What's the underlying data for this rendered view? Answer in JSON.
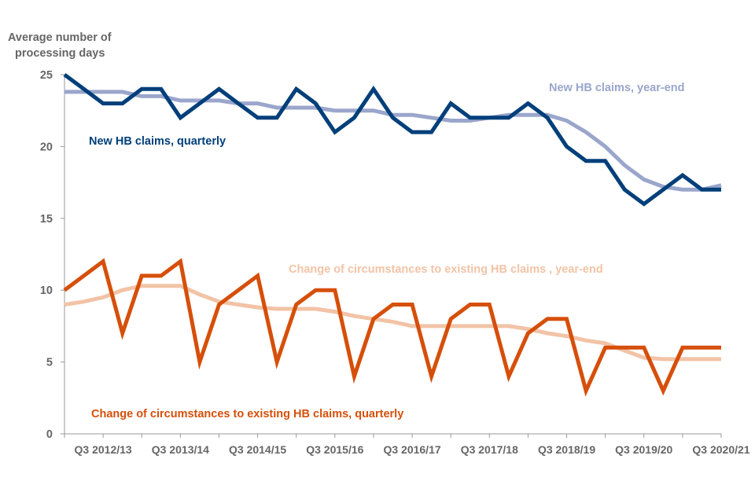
{
  "chart_data": {
    "type": "line",
    "ylabel": [
      "Average number of",
      "processing days"
    ],
    "ylim": [
      0,
      25
    ],
    "yticks": [
      0,
      5,
      10,
      15,
      20,
      25
    ],
    "xlabel": "",
    "xtick_labels": [
      "Q3 2012/13",
      "Q3 2013/14",
      "Q3 2014/15",
      "Q3 2015/16",
      "Q3 2016/17",
      "Q3 2017/18",
      "Q3 2018/19",
      "Q3 2019/20",
      "Q3 2020/21"
    ],
    "xtick_positions": [
      2,
      6,
      10,
      14,
      18,
      22,
      26,
      30,
      34
    ],
    "n_points": 35,
    "grid": false,
    "legend": "none (inline labels)",
    "series": [
      {
        "name": "New HB claims, quarterly",
        "color": "#003f7a",
        "values": [
          25,
          24,
          23,
          23,
          24,
          24,
          22,
          23,
          24,
          23,
          22,
          22,
          24,
          23,
          21,
          22,
          24,
          22,
          21,
          21,
          23,
          22,
          22,
          22,
          23,
          22,
          20,
          19,
          19,
          17,
          16,
          17,
          18,
          17,
          17
        ]
      },
      {
        "name": "New HB claims, year-end",
        "color": "#9aa6cb",
        "values": [
          23.8,
          23.8,
          23.8,
          23.8,
          23.5,
          23.5,
          23.2,
          23.2,
          23.2,
          23.0,
          23.0,
          22.7,
          22.7,
          22.7,
          22.5,
          22.5,
          22.5,
          22.2,
          22.2,
          22.0,
          21.8,
          21.8,
          22.0,
          22.2,
          22.2,
          22.2,
          21.8,
          21.0,
          20.0,
          18.7,
          17.7,
          17.2,
          17.0,
          17.0,
          17.3
        ]
      },
      {
        "name": "Change of circumstances to existing HB claims, quarterly",
        "color": "#d64f0a",
        "values": [
          10,
          11,
          12,
          7,
          11,
          11,
          12,
          5,
          9,
          10,
          11,
          5,
          9,
          10,
          10,
          4,
          8,
          9,
          9,
          4,
          8,
          9,
          9,
          4,
          7,
          8,
          8,
          3,
          6,
          6,
          6,
          3,
          6,
          6,
          6
        ]
      },
      {
        "name": "Change of circumstances to existing HB claims , year-end",
        "color": "#f2c3a6",
        "values": [
          9.0,
          9.2,
          9.5,
          10.0,
          10.3,
          10.3,
          10.3,
          9.7,
          9.2,
          9.0,
          8.8,
          8.7,
          8.7,
          8.7,
          8.5,
          8.2,
          8.0,
          7.8,
          7.5,
          7.5,
          7.5,
          7.5,
          7.5,
          7.5,
          7.3,
          7.0,
          6.8,
          6.5,
          6.3,
          5.8,
          5.3,
          5.2,
          5.2,
          5.2,
          5.2
        ]
      }
    ]
  }
}
